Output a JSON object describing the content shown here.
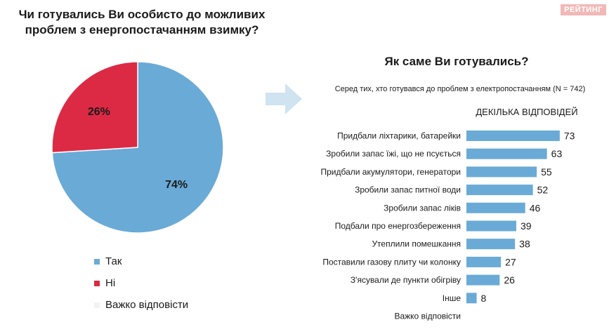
{
  "logo_text": "РЕЙТИНГ",
  "chart_data": [
    {
      "type": "pie",
      "title": "Чи готувались Ви особисто до можливих проблем з енергопостачанням взимку?",
      "slices": [
        {
          "label": "Так",
          "value": 74,
          "display": "74%",
          "color": "#6aaad6"
        },
        {
          "label": "Ні",
          "value": 26,
          "display": "26%",
          "color": "#dc2a45"
        },
        {
          "label": "Важко відповісти",
          "value": 0,
          "display": "",
          "color": "#f2f2f2"
        }
      ],
      "legend_position": "bottom"
    },
    {
      "type": "bar",
      "orientation": "horizontal",
      "title": "Як саме Ви готувались?",
      "subtitle": "Серед тих, хто готувався до проблем з електропостачанням (N = 742)",
      "note": "ДЕКІЛЬКА ВІДПОВІДЕЙ",
      "categories": [
        "Придбали ліхтарики, батарейки",
        "Зробили запас їжі, що не псується",
        "Придбали акумулятори, генератори",
        "Зробили запас питної води",
        "Зробили запас ліків",
        "Подбали про енергозбереження",
        "Утеплили помешкання",
        "Поставили газову плиту чи колонку",
        "З'ясували де пункти обігріву",
        "Інше",
        "Важко відповісти"
      ],
      "values": [
        73,
        63,
        55,
        52,
        46,
        39,
        38,
        27,
        26,
        8,
        null
      ],
      "color": "#6aaad6",
      "xlim": [
        0,
        100
      ],
      "grid": false
    }
  ]
}
